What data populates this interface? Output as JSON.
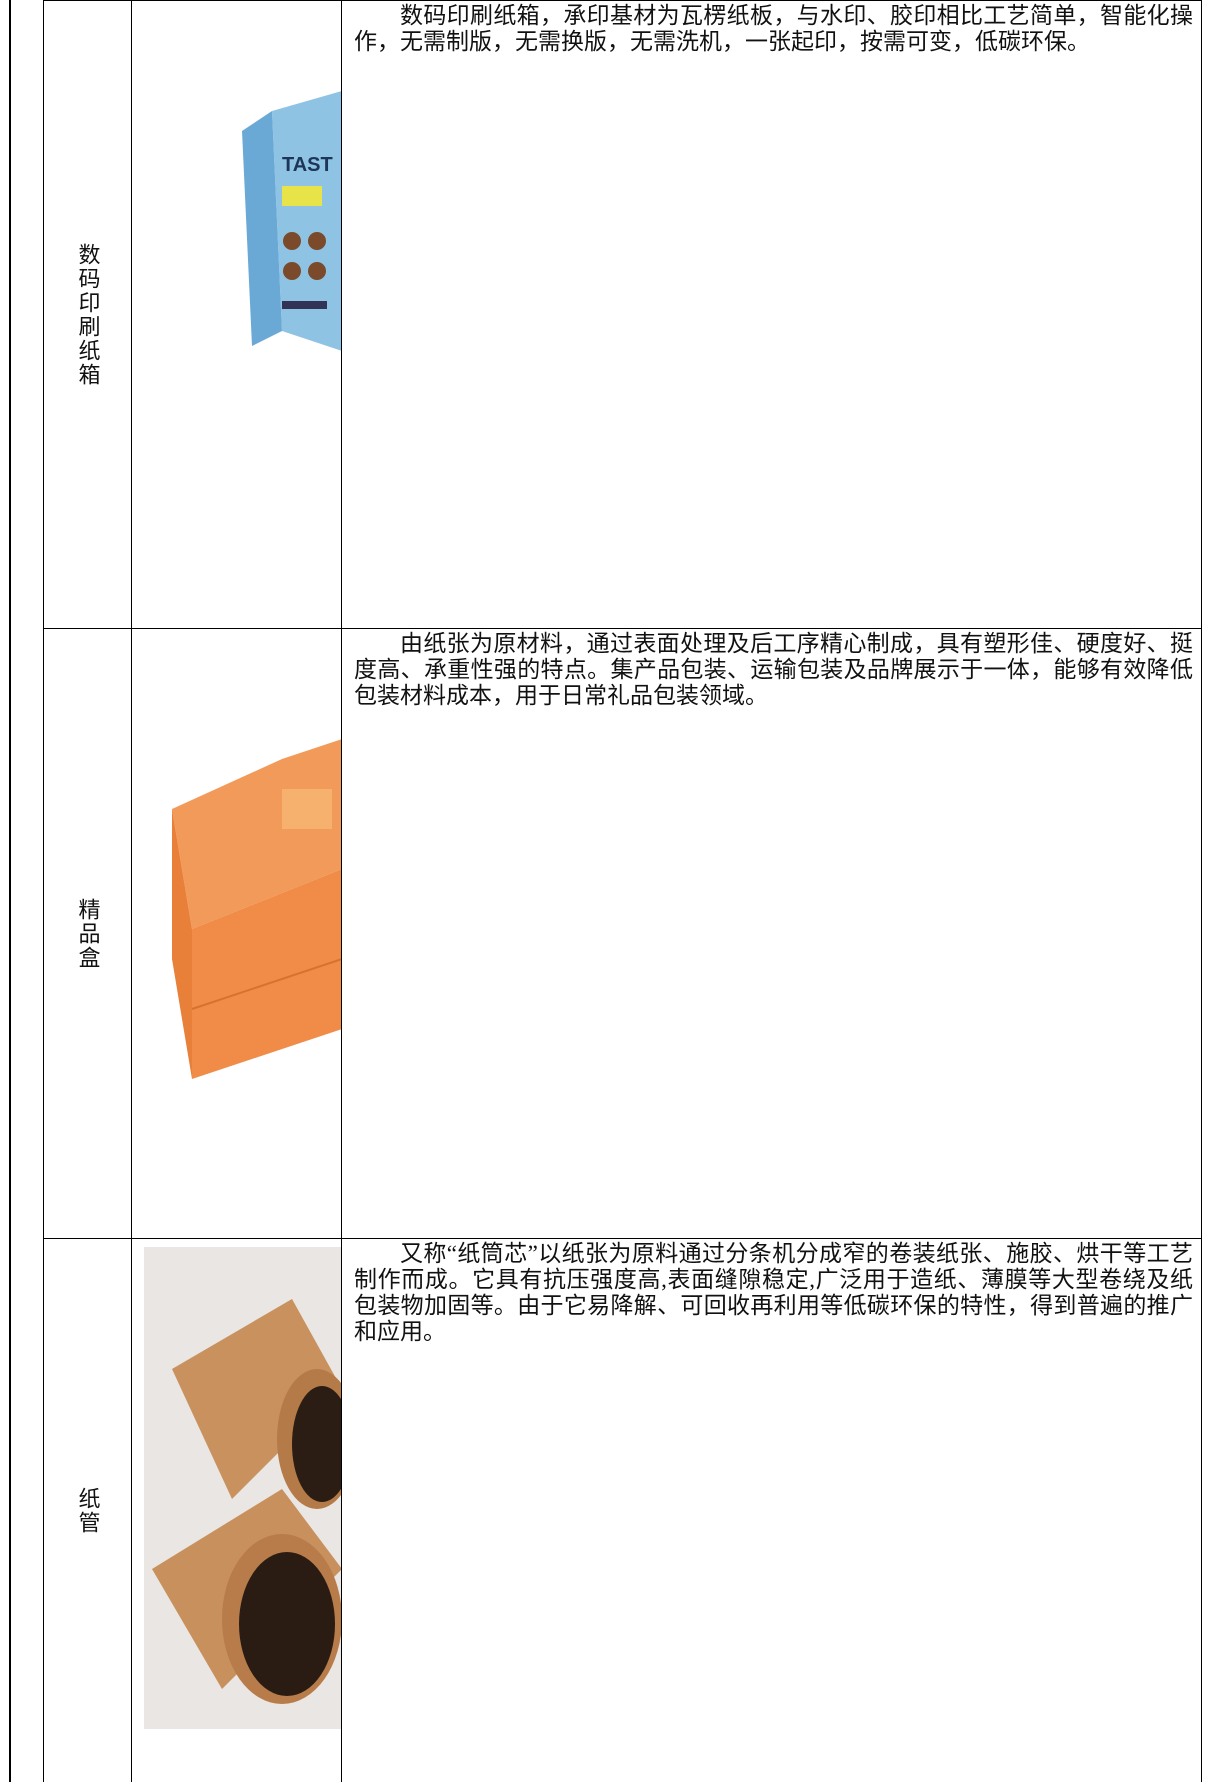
{
  "rows": [
    {
      "label": "数码印刷纸箱",
      "description": "数码印刷纸箱，承印基材为瓦楞纸板，与水印、胶印相比工艺简单，智能化操作，无需制版，无需换版，无需洗机，一张起印，按需可变，低碳环保。"
    },
    {
      "label": "精品盒",
      "description": "由纸张为原材料，通过表面处理及后工序精心制成，具有塑形佳、硬度好、挺度高、承重性强的特点。集产品包装、运输包装及品牌展示于一体，能够有效降低包装材料成本，用于日常礼品包装领域。"
    },
    {
      "label": "纸管",
      "description": "又称“纸筒芯”以纸张为原料通过分条机分成窄的卷装纸张、施胶、烘干等工艺制作而成。它具有抗压强度高,表面缝隙稳定,广泛用于造纸、薄膜等大型卷绕及纸包装物加固等。由于它易降解、可回收再利用等低碳环保的特性，得到普遍的推广和应用。"
    }
  ]
}
